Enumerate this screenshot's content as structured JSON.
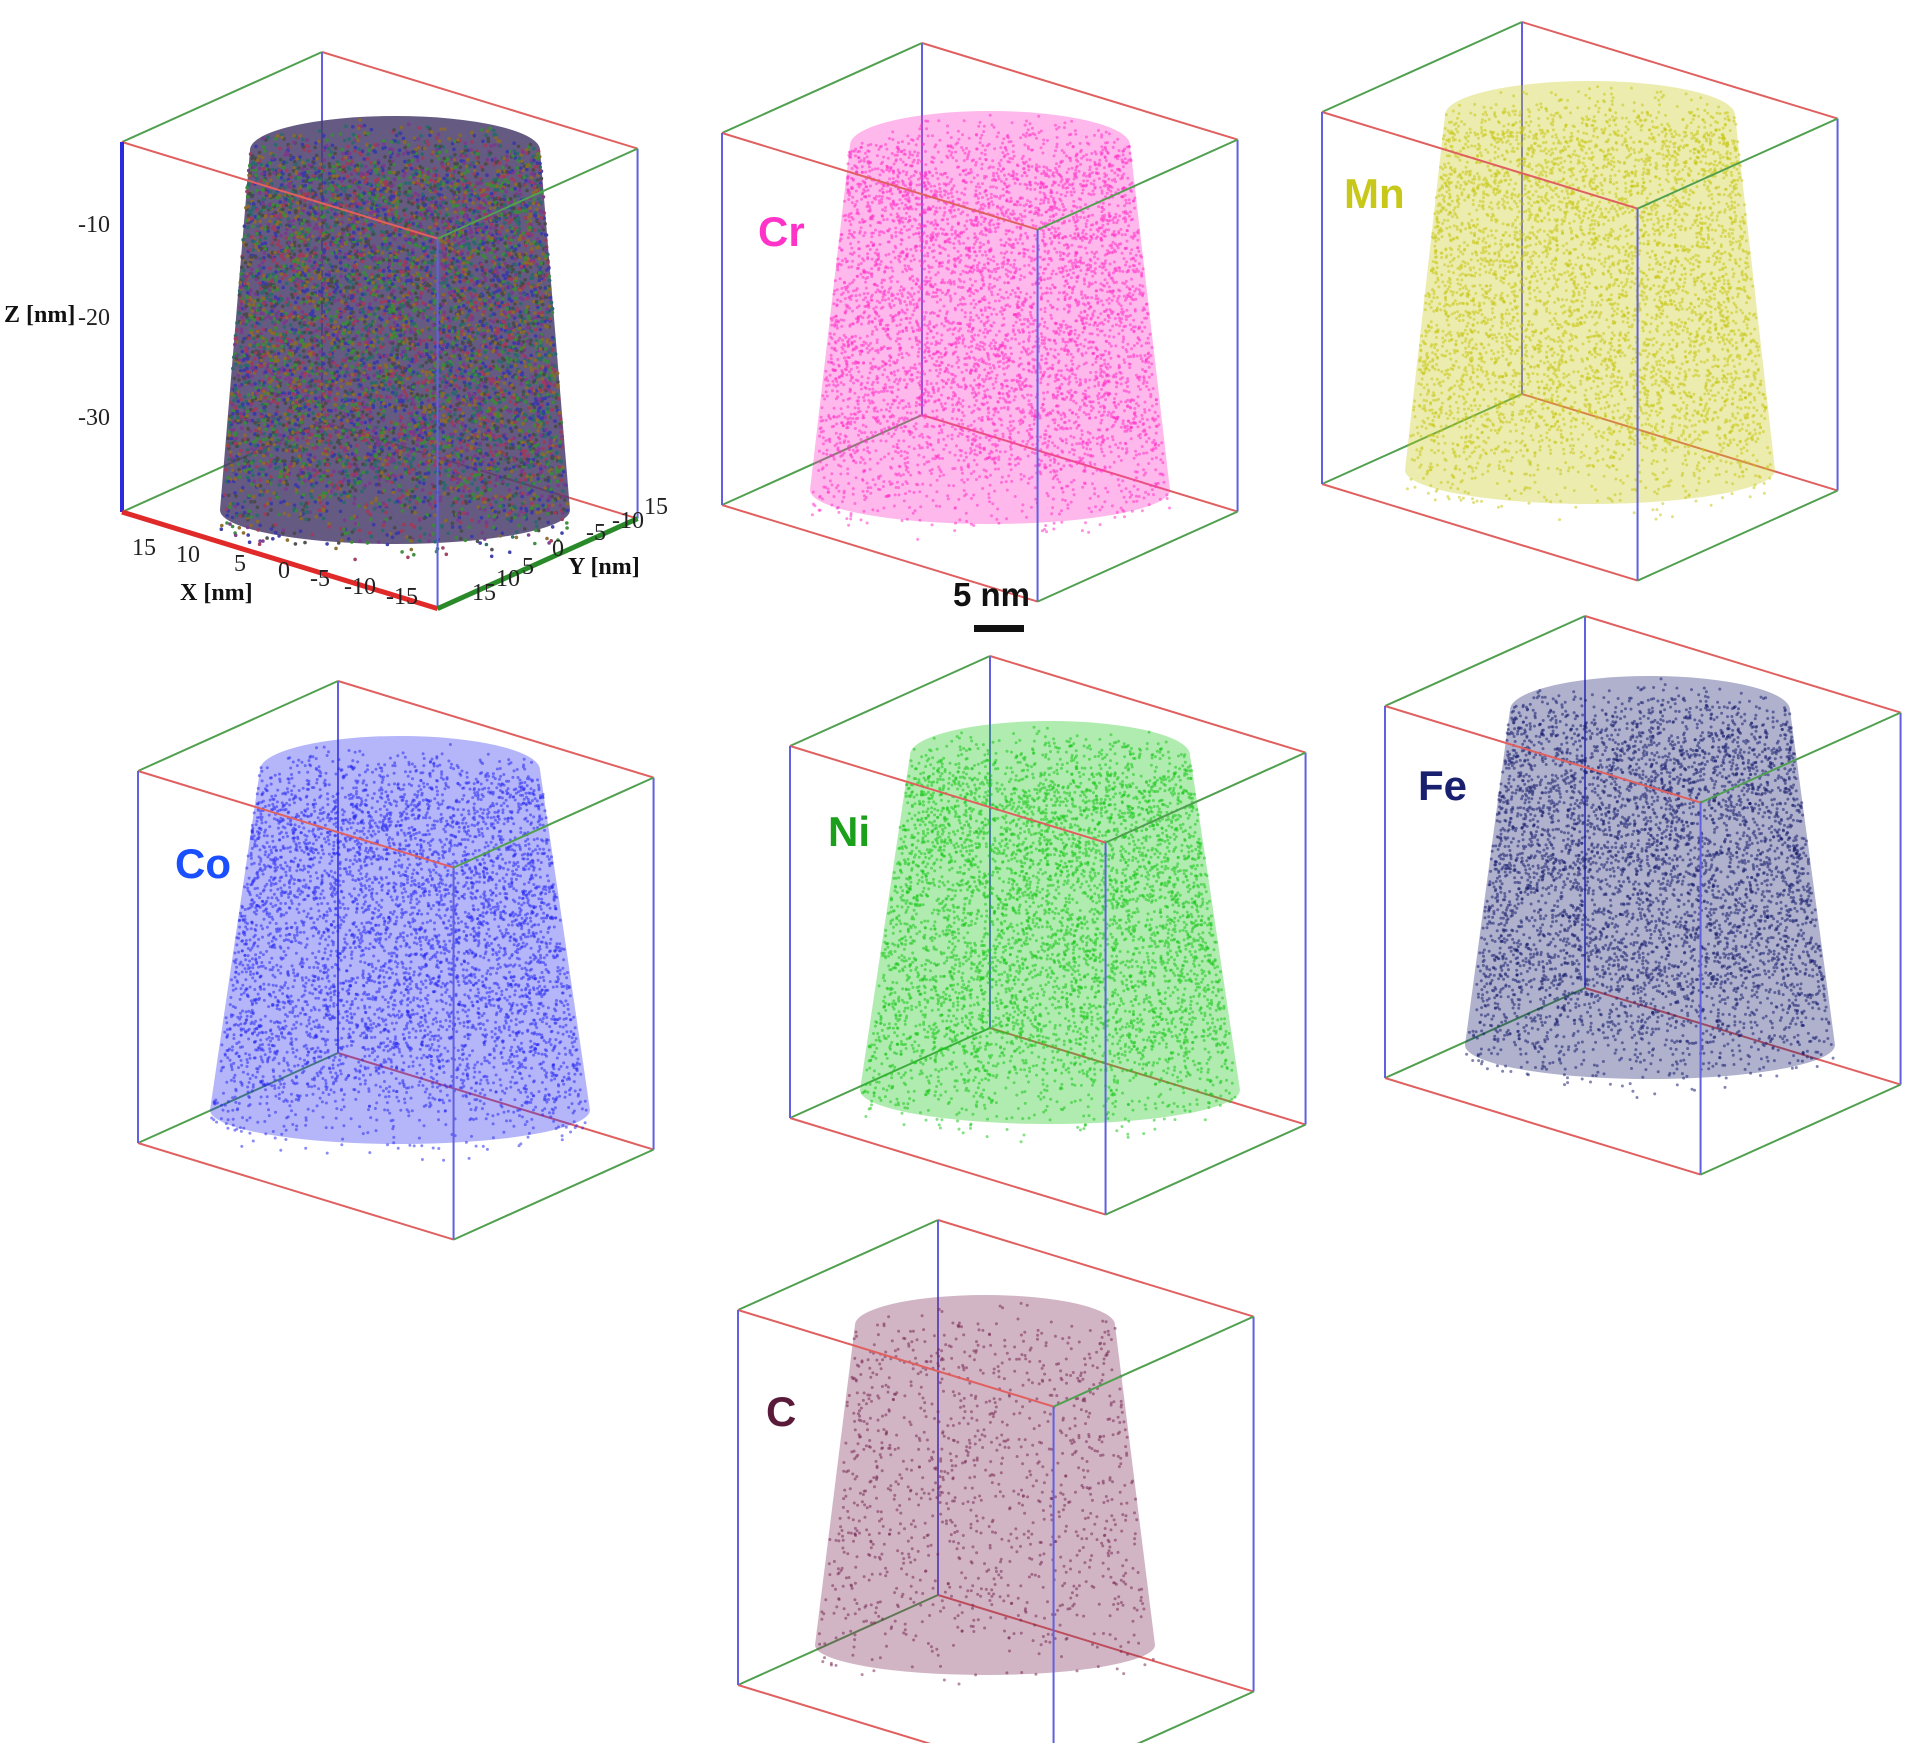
{
  "scale_bar": {
    "label": "5 nm"
  },
  "axes": {
    "z_title": "Z [nm]",
    "x_title": "X [nm]",
    "y_title": "Y [nm]",
    "z_ticks": [
      "-10",
      "-20",
      "-30"
    ],
    "x_ticks": [
      "15",
      "10",
      "5",
      "0",
      "-5",
      "-10",
      "-15"
    ],
    "y_ticks": [
      "15",
      "10",
      "5",
      "0",
      "-5",
      "-10",
      "15"
    ]
  },
  "panels": [
    {
      "id": "all",
      "label": "",
      "color": "#4a3d6b",
      "mixed": true
    },
    {
      "id": "cr",
      "label": "Cr",
      "color": "#ff33c8"
    },
    {
      "id": "mn",
      "label": "Mn",
      "color": "#c8c81a"
    },
    {
      "id": "co",
      "label": "Co",
      "color": "#2a2cf0"
    },
    {
      "id": "ni",
      "label": "Ni",
      "color": "#1ec81e"
    },
    {
      "id": "fe",
      "label": "Fe",
      "color": "#1a1f70"
    },
    {
      "id": "c",
      "label": "C",
      "color": "#7a2a55"
    }
  ],
  "colors": {
    "box_red": "#e06060",
    "box_green": "#50a050",
    "box_blue": "#6060e0"
  }
}
